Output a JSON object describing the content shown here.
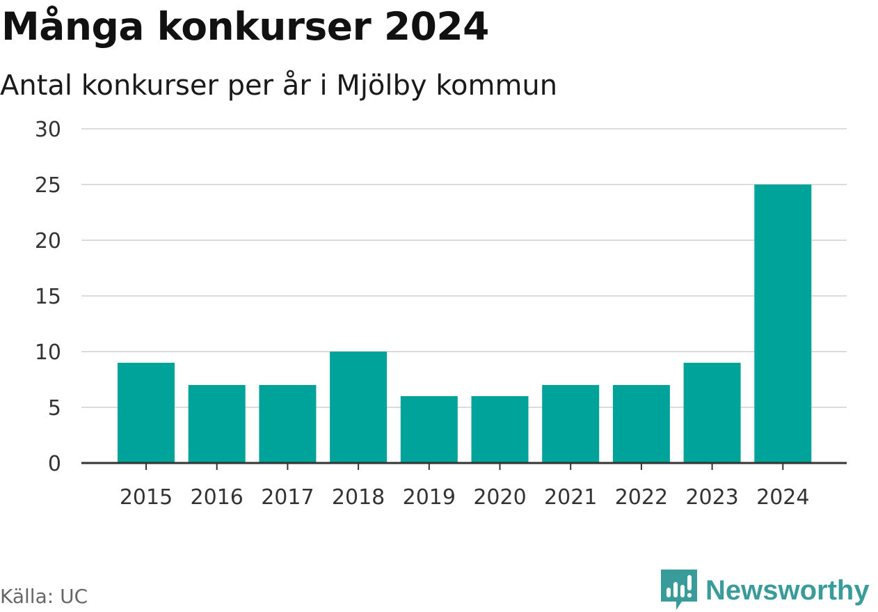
{
  "header": {
    "title": "Många konkurser 2024",
    "subtitle": "Antal konkurser per år i Mjölby kommun"
  },
  "footer": {
    "source": "Källa: UC",
    "brand": "Newsworthy"
  },
  "colors": {
    "bar": "#00a39a",
    "grid": "#dcdcdc",
    "axis": "#333333",
    "brand": "#3a9b9b"
  },
  "chart_data": {
    "type": "bar",
    "title": "Många konkurser 2024",
    "subtitle": "Antal konkurser per år i Mjölby kommun",
    "xlabel": "",
    "ylabel": "",
    "categories": [
      "2015",
      "2016",
      "2017",
      "2018",
      "2019",
      "2020",
      "2021",
      "2022",
      "2023",
      "2024"
    ],
    "values": [
      9,
      7,
      7,
      10,
      6,
      6,
      7,
      7,
      9,
      25
    ],
    "ylim": [
      0,
      30
    ],
    "yticks": [
      0,
      5,
      10,
      15,
      20,
      25,
      30
    ],
    "grid": true,
    "legend": false
  }
}
